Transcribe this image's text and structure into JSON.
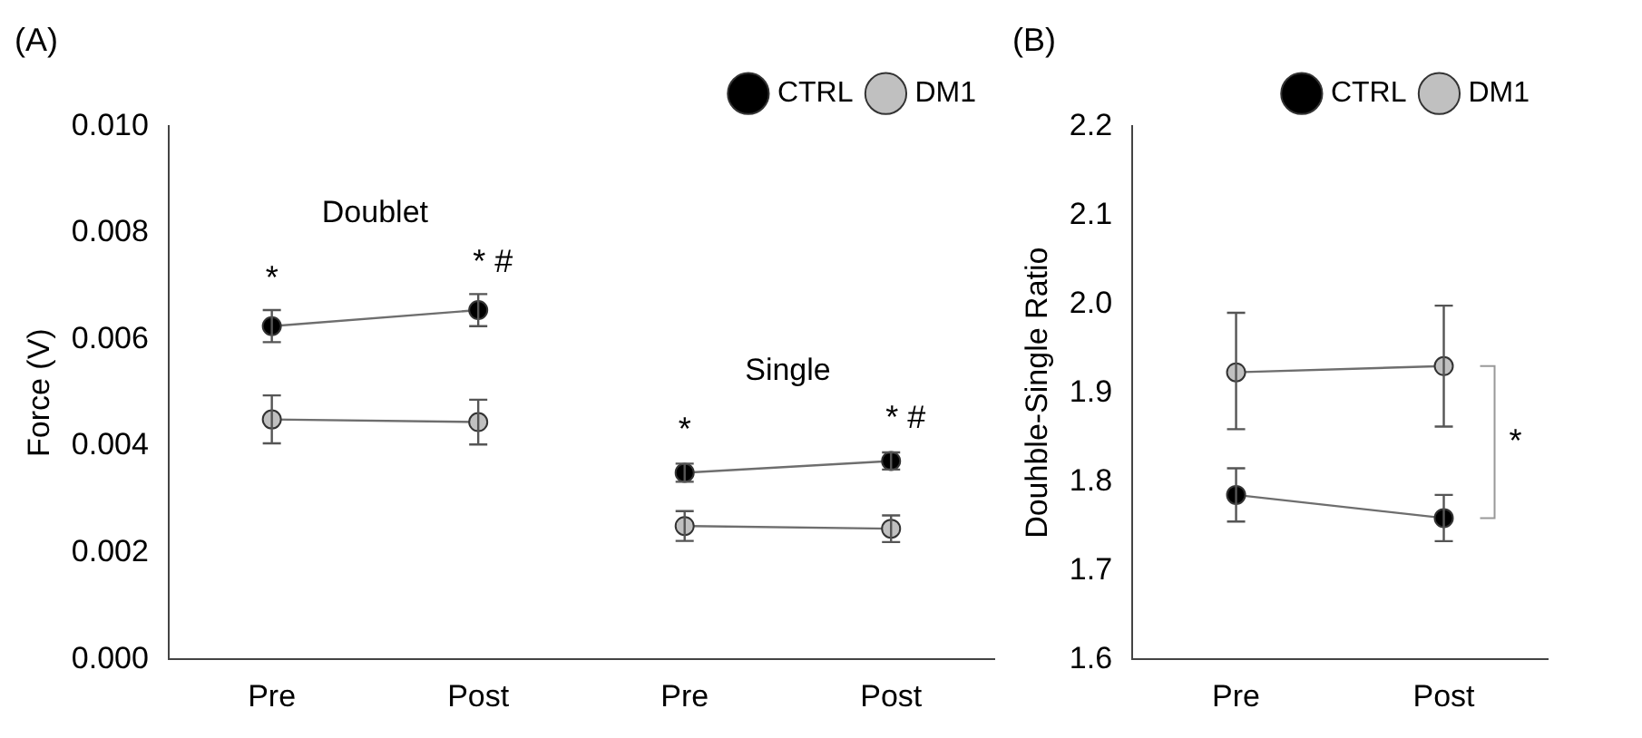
{
  "chart_data": [
    {
      "type": "line",
      "title": "(A)",
      "ylabel": "Force (V)",
      "categories": [
        "Pre",
        "Post",
        "Pre",
        "Post"
      ],
      "ylim": [
        0,
        0.01
      ],
      "yticks": [
        {
          "value": 0,
          "label": "0.000"
        },
        0.002,
        0.004,
        0.006,
        0.008,
        {
          "value": 0.01,
          "label": "0.010"
        }
      ],
      "grid": false,
      "legend": "top right",
      "marker": "circle",
      "line_style": "solid",
      "series": [
        {
          "name": "CTRL",
          "color": "#000000",
          "values": [
            0.00625,
            0.00655,
            null,
            null
          ],
          "errors": [
            0.0003,
            0.0003,
            null,
            null
          ],
          "value_labels": [
            "*",
            "* #",
            null,
            null
          ]
        },
        {
          "color": "#000000",
          "values": [
            null,
            null,
            0.0035,
            0.00372
          ],
          "errors": [
            null,
            null,
            0.00017,
            0.00016
          ],
          "value_labels": [
            null,
            null,
            "*",
            "* #"
          ]
        },
        {
          "name": "DM1",
          "color": "#c0c0c0",
          "values": [
            0.0045,
            0.00445,
            null,
            null
          ],
          "errors": [
            0.00045,
            0.00042,
            null,
            null
          ]
        },
        {
          "color": "#c0c0c0",
          "values": [
            null,
            null,
            0.0025,
            0.00245
          ],
          "errors": [
            null,
            null,
            0.00028,
            0.00025
          ]
        }
      ],
      "annotations": [
        "Doublet",
        "Single"
      ]
    },
    {
      "type": "line",
      "title": "(B)",
      "ylabel": "Douhble-Single Ratio",
      "categories": [
        "Pre",
        "Post"
      ],
      "ylim": [
        1.6,
        2.2
      ],
      "yticks": [
        1.6,
        1.7,
        1.8,
        1.9,
        {
          "value": 2,
          "label": "2.0"
        },
        2.1,
        2.2
      ],
      "grid": false,
      "legend": "top right",
      "marker": "circle",
      "line_style": "solid",
      "series": [
        {
          "name": "CTRL",
          "color": "#000000",
          "values": [
            1.785,
            1.759
          ],
          "errors": [
            [
              1.755,
              1.815
            ],
            [
              1.733,
              1.785
            ]
          ]
        },
        {
          "name": "DM1",
          "color": "#c0c0c0",
          "values": [
            1.923,
            1.93
          ],
          "errors": [
            [
              1.859,
              1.99
            ],
            [
              1.862,
              1.998
            ]
          ]
        }
      ],
      "annotations": [
        "*"
      ]
    }
  ]
}
